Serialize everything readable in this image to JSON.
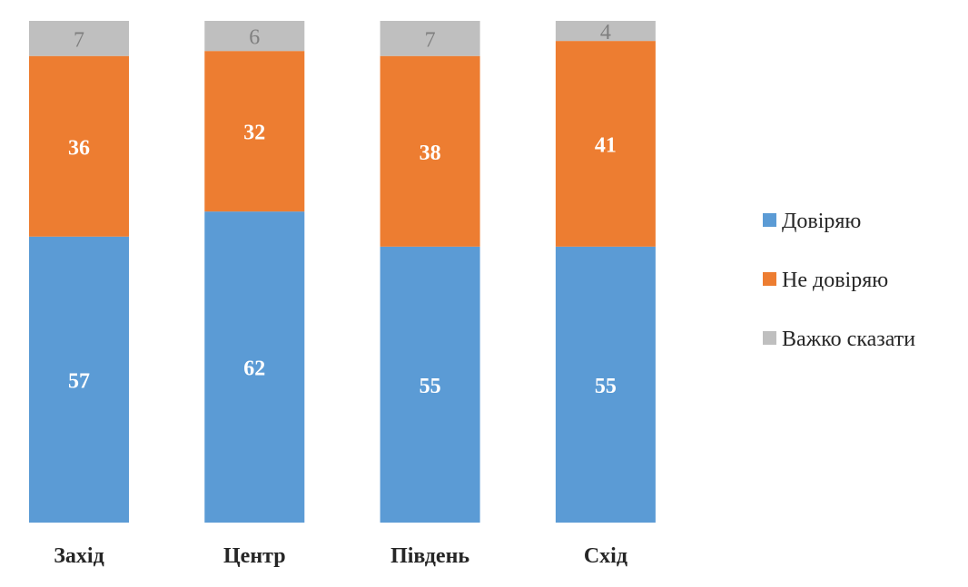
{
  "chart_data": {
    "type": "bar",
    "stacked": true,
    "percent_total": 100,
    "categories": [
      "Захід",
      "Центр",
      "Південь",
      "Схід"
    ],
    "series": [
      {
        "name": "Довіряю",
        "values": [
          57,
          62,
          55,
          55
        ],
        "color": "#5b9bd5"
      },
      {
        "name": "Не довіряю",
        "values": [
          36,
          32,
          38,
          41
        ],
        "color": "#ed7d31"
      },
      {
        "name": "Важко сказати",
        "values": [
          7,
          6,
          7,
          4
        ],
        "color": "#bfbfbf"
      }
    ],
    "legend_position": "right",
    "grid": false,
    "ylim": [
      0,
      100
    ]
  }
}
